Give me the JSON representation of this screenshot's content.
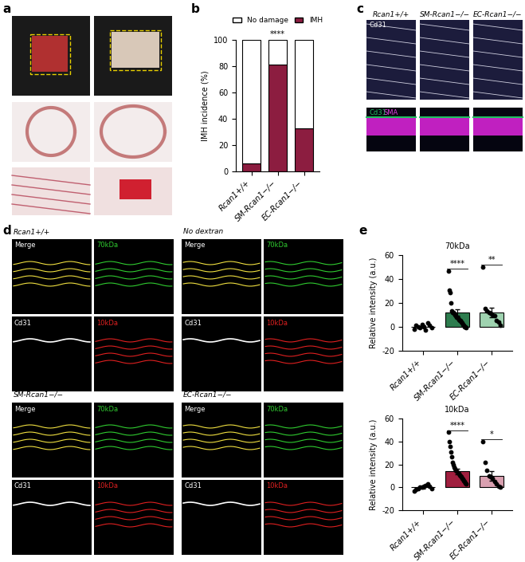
{
  "panel_labels": [
    "a",
    "b",
    "c",
    "d",
    "e"
  ],
  "chart_data": [
    {
      "type": "bar",
      "stacked": true,
      "categories": [
        "Rcan1+/+",
        "SM-Rcan1−/−",
        "EC-Rcan1−/−"
      ],
      "series": [
        {
          "name": "IMH",
          "color": "#8c1d40",
          "values": [
            6,
            81,
            33
          ]
        },
        {
          "name": "No damage",
          "color": "#ffffff",
          "values": [
            94,
            19,
            67
          ]
        }
      ],
      "ylabel": "IMH incidence (%)",
      "ylim": [
        0,
        100
      ],
      "yticks": [
        0,
        20,
        40,
        60,
        80,
        100
      ],
      "legend": "top",
      "annotations": [
        {
          "category": "SM-Rcan1−/−",
          "text": "****"
        }
      ]
    },
    {
      "type": "bar",
      "title": "70kDa",
      "categories": [
        "Rcan1+/+",
        "SM-Rcan1−/−",
        "EC-Rcan1−/−"
      ],
      "values": [
        0,
        12,
        12
      ],
      "errors": [
        1,
        2.5,
        4
      ],
      "colors": [
        "#ffffff",
        "#2e7d4f",
        "#9fd3b0"
      ],
      "points": [
        [
          -2,
          1,
          0,
          -1,
          2,
          0,
          -3,
          3,
          1,
          -1
        ],
        [
          47,
          31,
          29,
          20,
          13,
          12,
          12,
          11,
          10,
          9,
          8,
          7,
          6,
          5,
          5,
          4,
          3,
          2,
          1,
          0,
          0,
          -1
        ],
        [
          50,
          15,
          13,
          12,
          11,
          10,
          9,
          5,
          4,
          1
        ]
      ],
      "ylabel": "Relative intensity (a.u.)",
      "ylim": [
        -20,
        60
      ],
      "yticks": [
        -20,
        0,
        20,
        40,
        60
      ],
      "annotations": [
        {
          "category": "SM-Rcan1−/−",
          "text": "****"
        },
        {
          "category": "EC-Rcan1−/−",
          "text": "**"
        }
      ]
    },
    {
      "type": "bar",
      "title": "10kDa",
      "categories": [
        "Rcan1+/+",
        "SM-Rcan1−/−",
        "EC-Rcan1−/−"
      ],
      "values": [
        0,
        14,
        10
      ],
      "errors": [
        0.8,
        2.5,
        4
      ],
      "colors": [
        "#ffffff",
        "#a01f3f",
        "#d9a0b0"
      ],
      "points": [
        [
          -3,
          -2,
          -1,
          0,
          0,
          1,
          2,
          3,
          1,
          -1
        ],
        [
          48,
          40,
          36,
          31,
          27,
          22,
          20,
          18,
          16,
          15,
          14,
          13,
          12,
          11,
          10,
          9,
          8,
          7,
          6,
          5,
          4,
          3
        ],
        [
          40,
          22,
          15,
          10,
          9,
          8,
          5,
          3,
          1,
          0
        ]
      ],
      "ylabel": "Relative intensity (a.u.)",
      "ylim": [
        -20,
        60
      ],
      "yticks": [
        -20,
        0,
        20,
        40,
        60
      ],
      "annotations": [
        {
          "category": "SM-Rcan1−/−",
          "text": "****"
        },
        {
          "category": "EC-Rcan1−/−",
          "text": "*"
        }
      ]
    }
  ],
  "image_panels": {
    "c": {
      "columns": [
        "Rcan1+/+",
        "SM-Rcan1−/−",
        "EC-Rcan1−/−"
      ],
      "rows": [
        [
          "Cd31"
        ],
        [
          "Cd31",
          "SMA"
        ]
      ]
    },
    "d": {
      "groups": [
        {
          "title": "Rcan1+/+",
          "tiles": [
            "Merge",
            "70kDa",
            "Cd31",
            "10kDa"
          ]
        },
        {
          "title": "No dextran",
          "tiles": [
            "Merge",
            "70kDa",
            "Cd31",
            "10kDa"
          ]
        },
        {
          "title": "SM-Rcan1−/−",
          "tiles": [
            "Merge",
            "70kDa",
            "Cd31",
            "10kDa"
          ]
        },
        {
          "title": "EC-Rcan1−/−",
          "tiles": [
            "Merge",
            "70kDa",
            "Cd31",
            "10kDa"
          ]
        }
      ]
    }
  }
}
